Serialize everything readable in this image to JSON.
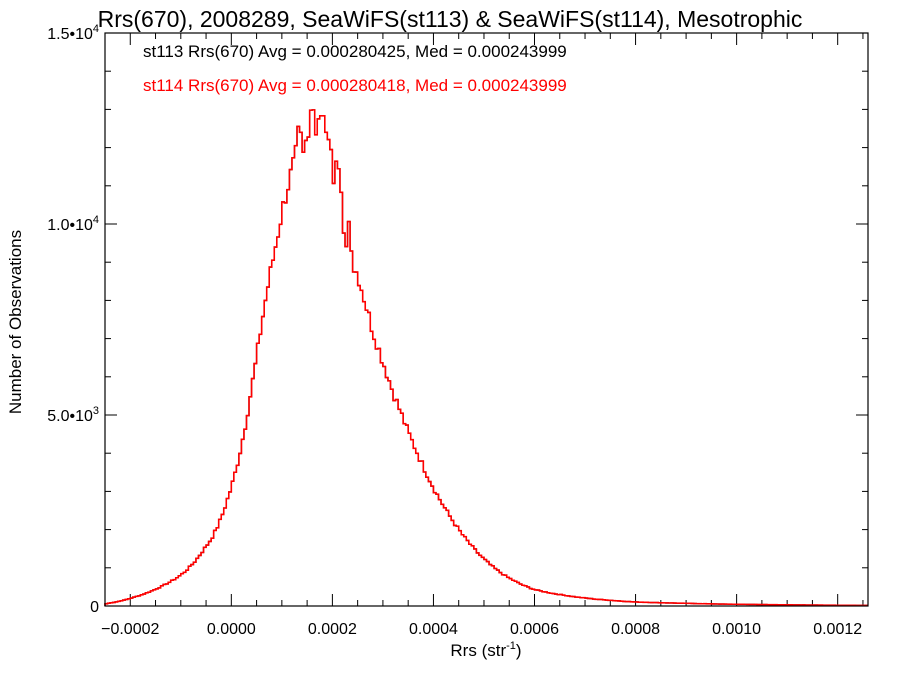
{
  "chart_data": {
    "type": "histogram",
    "title": "Rrs(670), 2008289, SeaWiFS(st113) & SeaWiFS(st114), Mesotrophic",
    "xlabel_text": "Rrs (str",
    "xlabel_sup": "-1",
    "xlabel_tail": ")",
    "ylabel": "Number of Observations",
    "xlim": [
      -0.00025,
      0.00126
    ],
    "ylim": [
      0,
      15000
    ],
    "x_ticks": [
      -0.0002,
      0.0,
      0.0002,
      0.0004,
      0.0006,
      0.0008,
      0.001,
      0.0012
    ],
    "x_tick_labels": [
      "−0.0002",
      "0.0000",
      "0.0002",
      "0.0004",
      "0.0006",
      "0.0008",
      "0.0010",
      "0.0012"
    ],
    "y_ticks": [
      0,
      5000,
      10000,
      15000
    ],
    "y_tick_labels": [
      {
        "mant": "0",
        "exp": ""
      },
      {
        "mant": "5.0•10",
        "exp": "3"
      },
      {
        "mant": "1.0•10",
        "exp": "4"
      },
      {
        "mant": "1.5•10",
        "exp": "4"
      }
    ],
    "bin_width": 5e-06,
    "series": [
      {
        "name": "st113",
        "color": "#000000"
      },
      {
        "name": "st114",
        "color": "#ff0000"
      }
    ],
    "annotations": [
      {
        "text": "st113 Rrs(670) Avg = 0.000280425, Med = 0.000243999",
        "color": "#000000"
      },
      {
        "text": "st114 Rrs(670) Avg = 0.000280418, Med = 0.000243999",
        "color": "#ff0000"
      }
    ],
    "histogram": [
      [
        -0.00025,
        50
      ],
      [
        -0.00024,
        80
      ],
      [
        -0.00023,
        100
      ],
      [
        -0.00022,
        130
      ],
      [
        -0.00021,
        160
      ],
      [
        -0.0002,
        200
      ],
      [
        -0.00019,
        240
      ],
      [
        -0.00018,
        280
      ],
      [
        -0.00017,
        330
      ],
      [
        -0.00016,
        380
      ],
      [
        -0.00015,
        440
      ],
      [
        -0.00014,
        500
      ],
      [
        -0.00013,
        570
      ],
      [
        -0.00012,
        640
      ],
      [
        -0.00011,
        720
      ],
      [
        -0.0001,
        810
      ],
      [
        -9e-05,
        920
      ],
      [
        -8e-05,
        1050
      ],
      [
        -7e-05,
        1200
      ],
      [
        -6e-05,
        1380
      ],
      [
        -5e-05,
        1560
      ],
      [
        -4e-05,
        1750
      ],
      [
        -3e-05,
        2000
      ],
      [
        -2e-05,
        2300
      ],
      [
        -1e-05,
        2700
      ],
      [
        0.0,
        3100
      ],
      [
        1e-05,
        3600
      ],
      [
        2e-05,
        4200
      ],
      [
        3e-05,
        4900
      ],
      [
        4e-05,
        5700
      ],
      [
        5e-05,
        6500
      ],
      [
        6e-05,
        7400
      ],
      [
        7e-05,
        8200
      ],
      [
        8e-05,
        8900
      ],
      [
        9e-05,
        9600
      ],
      [
        0.0001,
        10300
      ],
      [
        0.00011,
        10900
      ],
      [
        0.00012,
        11400
      ],
      [
        0.00013,
        11900
      ],
      [
        0.00014,
        12200
      ],
      [
        0.00015,
        12500
      ],
      [
        0.00016,
        12700
      ],
      [
        0.00017,
        12800
      ],
      [
        0.00018,
        12600
      ],
      [
        0.00019,
        12300
      ],
      [
        0.0002,
        11800
      ],
      [
        0.00021,
        11200
      ],
      [
        0.00022,
        10500
      ],
      [
        0.00023,
        9900
      ],
      [
        0.00024,
        9300
      ],
      [
        0.00025,
        8700
      ],
      [
        0.00026,
        8200
      ],
      [
        0.00027,
        7700
      ],
      [
        0.00028,
        7200
      ],
      [
        0.00029,
        6800
      ],
      [
        0.0003,
        6400
      ],
      [
        0.00031,
        6000
      ],
      [
        0.00032,
        5600
      ],
      [
        0.00033,
        5250
      ],
      [
        0.00034,
        4900
      ],
      [
        0.00035,
        4550
      ],
      [
        0.00036,
        4250
      ],
      [
        0.00037,
        3950
      ],
      [
        0.00038,
        3650
      ],
      [
        0.00039,
        3380
      ],
      [
        0.0004,
        3100
      ],
      [
        0.00041,
        2850
      ],
      [
        0.00042,
        2620
      ],
      [
        0.00043,
        2400
      ],
      [
        0.00044,
        2200
      ],
      [
        0.00045,
        2000
      ],
      [
        0.00046,
        1820
      ],
      [
        0.00047,
        1660
      ],
      [
        0.00048,
        1500
      ],
      [
        0.00049,
        1360
      ],
      [
        0.0005,
        1230
      ],
      [
        0.00051,
        1110
      ],
      [
        0.00052,
        1000
      ],
      [
        0.00053,
        900
      ],
      [
        0.00054,
        810
      ],
      [
        0.00055,
        730
      ],
      [
        0.00056,
        660
      ],
      [
        0.00057,
        590
      ],
      [
        0.00058,
        530
      ],
      [
        0.00059,
        480
      ],
      [
        0.0006,
        430
      ],
      [
        0.00062,
        370
      ],
      [
        0.00064,
        320
      ],
      [
        0.00066,
        280
      ],
      [
        0.00068,
        240
      ],
      [
        0.0007,
        210
      ],
      [
        0.00072,
        180
      ],
      [
        0.00074,
        160
      ],
      [
        0.00076,
        140
      ],
      [
        0.00078,
        120
      ],
      [
        0.0008,
        105
      ],
      [
        0.00085,
        85
      ],
      [
        0.0009,
        70
      ],
      [
        0.00095,
        55
      ],
      [
        0.001,
        45
      ],
      [
        0.00105,
        38
      ],
      [
        0.0011,
        30
      ],
      [
        0.00115,
        25
      ],
      [
        0.0012,
        20
      ],
      [
        0.00125,
        15
      ]
    ]
  }
}
